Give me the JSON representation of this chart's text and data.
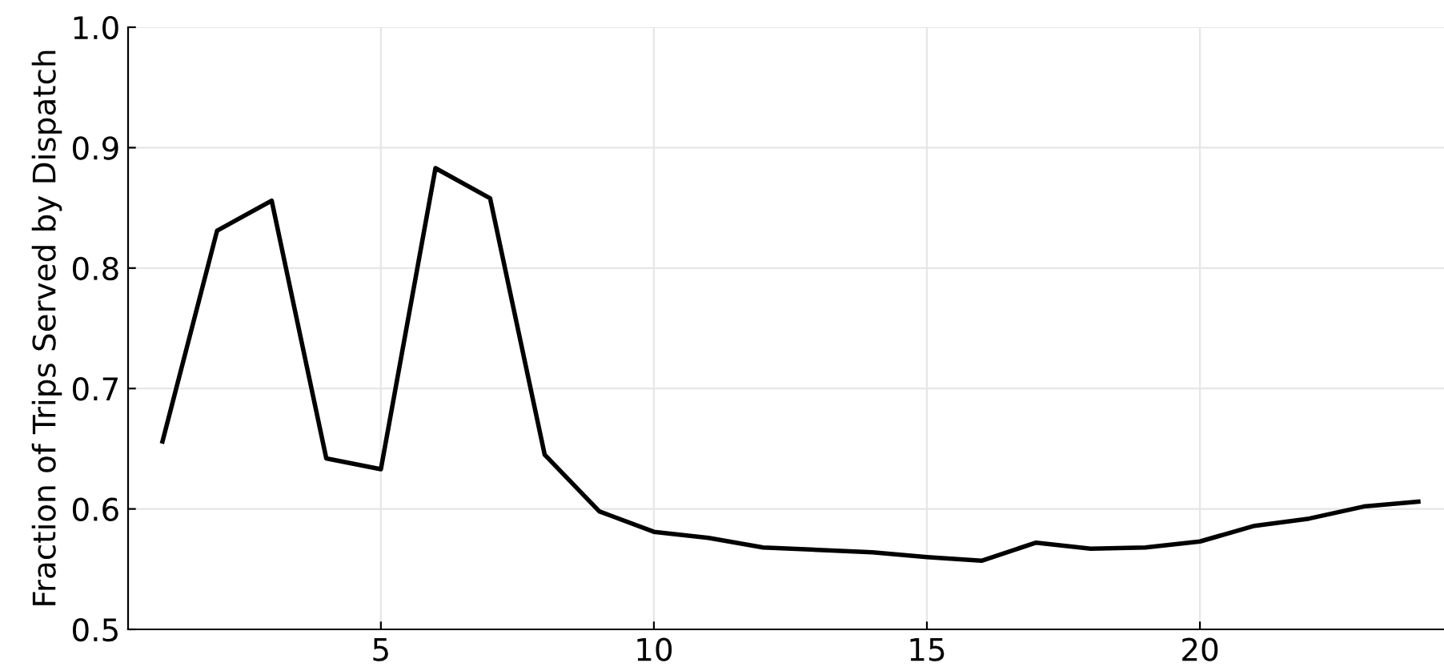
{
  "chart_data": {
    "type": "line",
    "ylabel": "Fraction of Trips Served by Dispatch",
    "x": [
      1,
      2,
      3,
      4,
      5,
      6,
      7,
      8,
      9,
      10,
      11,
      12,
      13,
      14,
      15,
      16,
      17,
      18,
      19,
      20,
      21,
      22,
      23,
      24
    ],
    "series": [
      {
        "color": "#000000",
        "values": [
          0.656,
          0.831,
          0.856,
          0.642,
          0.633,
          0.883,
          0.858,
          0.645,
          0.598,
          0.581,
          0.576,
          0.568,
          0.566,
          0.564,
          0.56,
          0.557,
          0.572,
          0.567,
          0.568,
          0.573,
          0.586,
          0.592,
          0.602,
          0.606
        ]
      }
    ],
    "xlim": [
      0.37,
      24.47
    ],
    "xticks": [
      5,
      10,
      15,
      20
    ],
    "ylim": [
      0.5,
      1.0
    ],
    "yticks": [
      0.5,
      0.6,
      0.7,
      0.8,
      0.9,
      {
        "value": 1.0,
        "label": "1.0"
      }
    ],
    "grid": true,
    "legend": false,
    "marker": "none",
    "line_style": "solid"
  }
}
